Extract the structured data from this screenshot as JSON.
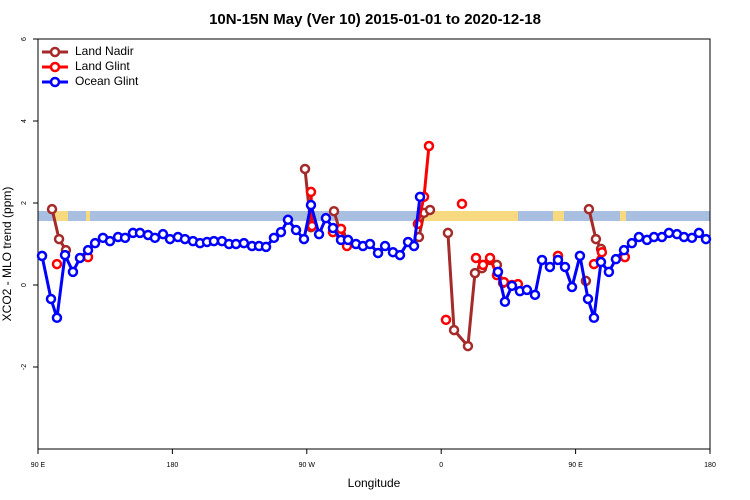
{
  "chart_data": {
    "type": "line",
    "title": "10N-15N May (Ver 10)   2015-01-01 to 2020-12-18",
    "x_label": "Longitude",
    "y_label": "XCO2 - MLO trend (ppm)",
    "xlim": [
      90,
      540
    ],
    "ylim": [
      -4,
      6
    ],
    "xticks": [
      {
        "value": 90,
        "label": "90 E"
      },
      180,
      {
        "value": 270,
        "label": "90 W"
      },
      {
        "value": 360,
        "label": "0"
      },
      {
        "value": 450,
        "label": "90 E"
      },
      {
        "value": 540,
        "label": "180"
      }
    ],
    "yticks": [
      -2,
      0,
      2,
      4,
      6
    ],
    "legend": "top-left",
    "series": [
      {
        "name": "Land Nadir",
        "color": "#a52a2a",
        "x": [
          99.4,
          104.1,
          108.7,
          null,
          268.8,
          272.8,
          null,
          288.2,
          292.9,
          null,
          345.1,
          348.5,
          352.5,
          null,
          364.5,
          368.6,
          377.9,
          382.6,
          387.3,
          392.7,
          397.3,
          401.4,
          null,
          456.9,
          null,
          458.9,
          463.6,
          467.0
        ],
        "values": [
          1.85,
          1.12,
          0.85,
          null,
          2.83,
          1.41,
          null,
          1.8,
          1.22,
          null,
          1.17,
          1.76,
          1.83,
          null,
          1.27,
          -1.1,
          -1.49,
          0.29,
          0.41,
          0.61,
          0.49,
          0.05,
          null,
          0.1,
          null,
          1.85,
          1.12,
          0.88
        ]
      },
      {
        "name": "Land Glint",
        "color": "#ff0000",
        "x": [
          102.7,
          null,
          123.5,
          null,
          272.8,
          273.5,
          null,
          287.5,
          292.9,
          296.9,
          null,
          344.4,
          348.5,
          351.8,
          null,
          363.2,
          null,
          373.9,
          null,
          383.3,
          388.0,
          392.7,
          397.3,
          402.0,
          null,
          407.4,
          411.4,
          null,
          438.2,
          null,
          462.3,
          467.6,
          null,
          483.0
        ],
        "values": [
          0.51,
          null,
          0.68,
          null,
          2.27,
          1.44,
          null,
          1.29,
          1.37,
          0.95,
          null,
          1.49,
          2.15,
          3.39,
          null,
          -0.85,
          null,
          1.98,
          null,
          0.66,
          0.49,
          0.66,
          0.24,
          0.07,
          null,
          0.0,
          0.02,
          null,
          0.71,
          null,
          0.51,
          0.8,
          null,
          0.68
        ]
      },
      {
        "name": "Ocean Glint",
        "color": "#0000ff",
        "x": [
          92.7,
          98.7,
          102.7,
          108.1,
          113.4,
          118.1,
          123.5,
          128.2,
          133.5,
          138.2,
          143.6,
          148.3,
          153.6,
          158.3,
          163.7,
          168.3,
          173.7,
          178.4,
          183.7,
          188.4,
          193.8,
          198.5,
          203.2,
          207.8,
          213.2,
          217.9,
          222.6,
          227.9,
          233.3,
          238.0,
          242.7,
          248.0,
          252.7,
          257.4,
          262.8,
          268.1,
          272.8,
          278.2,
          282.8,
          287.5,
          292.9,
          297.6,
          302.9,
          307.6,
          312.3,
          317.7,
          322.4,
          327.7,
          332.4,
          337.8,
          341.8,
          345.8,
          null,
          398.0,
          402.7,
          407.4,
          412.7,
          417.4,
          422.8,
          427.5,
          432.8,
          438.2,
          442.9,
          447.6,
          452.9,
          458.3,
          462.3,
          467.0,
          472.3,
          477.0,
          482.4,
          487.7,
          492.4,
          497.8,
          502.5,
          507.8,
          512.5,
          517.9,
          522.6,
          527.9,
          532.6,
          537.3
        ],
        "values": [
          0.71,
          -0.34,
          -0.8,
          0.73,
          0.32,
          0.66,
          0.85,
          1.02,
          1.15,
          1.07,
          1.17,
          1.15,
          1.27,
          1.27,
          1.22,
          1.15,
          1.24,
          1.12,
          1.17,
          1.12,
          1.07,
          1.02,
          1.05,
          1.07,
          1.07,
          1.0,
          1.0,
          1.02,
          0.95,
          0.95,
          0.93,
          1.15,
          1.29,
          1.59,
          1.34,
          1.12,
          1.95,
          1.24,
          1.63,
          1.39,
          1.1,
          1.1,
          1.0,
          0.95,
          1.0,
          0.78,
          0.95,
          0.8,
          0.73,
          1.05,
          0.95,
          2.15,
          null,
          0.32,
          -0.41,
          -0.02,
          -0.15,
          -0.12,
          -0.24,
          0.61,
          0.44,
          0.61,
          0.44,
          -0.05,
          0.71,
          -0.34,
          -0.8,
          0.56,
          0.32,
          0.63,
          0.85,
          1.02,
          1.17,
          1.1,
          1.17,
          1.17,
          1.27,
          1.24,
          1.17,
          1.15,
          1.27,
          1.12
        ]
      }
    ]
  }
}
